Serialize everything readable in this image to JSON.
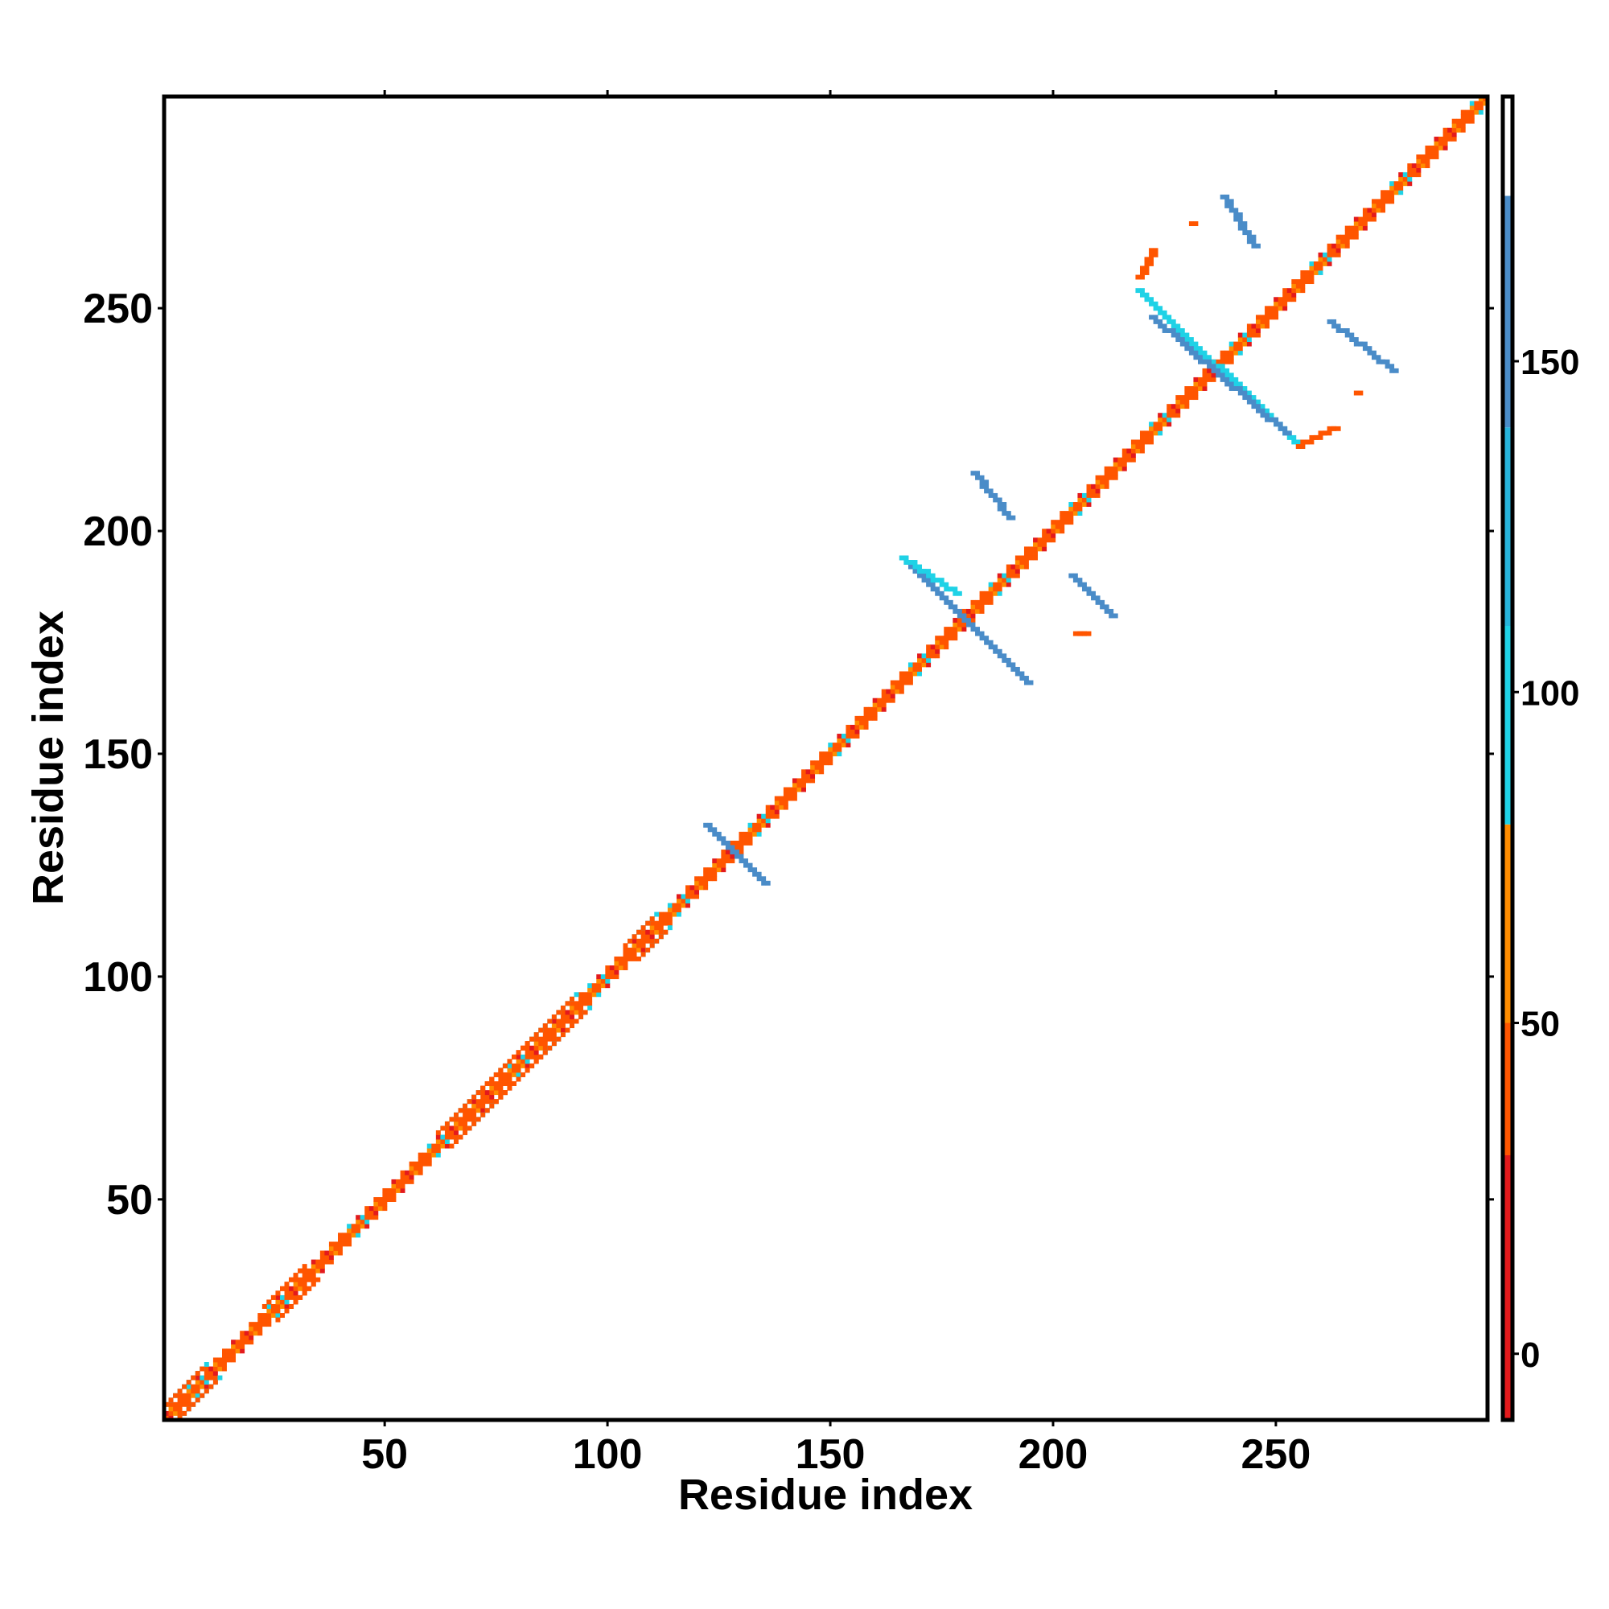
{
  "chart_data": {
    "type": "heatmap",
    "title": "",
    "xlabel": "Residue index",
    "ylabel": "Residue index",
    "xlim": [
      1,
      297
    ],
    "ylim": [
      1,
      297
    ],
    "x_ticks": [
      50,
      100,
      150,
      200,
      250
    ],
    "y_ticks": [
      50,
      100,
      150,
      200,
      250
    ],
    "colorbar": {
      "range": [
        -10,
        190
      ],
      "ticks": [
        0,
        50,
        100,
        150
      ],
      "bins": [
        {
          "from": -10,
          "to": 30,
          "color": "#e31a1c"
        },
        {
          "from": 30,
          "to": 50,
          "color": "#ff5500"
        },
        {
          "from": 50,
          "to": 80,
          "color": "#ff8c00"
        },
        {
          "from": 80,
          "to": 110,
          "color": "#1fd2e6"
        },
        {
          "from": 110,
          "to": 140,
          "color": "#27b4dc"
        },
        {
          "from": 140,
          "to": 175,
          "color": "#4a8cc8"
        },
        {
          "from": 175,
          "to": 190,
          "color": "#ffffff"
        }
      ]
    },
    "diagonal": {
      "from": 1,
      "to": 297,
      "value_pattern": [
        40,
        20,
        70,
        40,
        40,
        30,
        60,
        40,
        50,
        95,
        40,
        20,
        65,
        40,
        45,
        30,
        75,
        40
      ]
    },
    "diagonal_bulges": [
      {
        "center": 5,
        "length": 10,
        "value": 95
      },
      {
        "center": 28,
        "length": 8,
        "value": 45
      },
      {
        "center": 70,
        "length": 14,
        "value": 95
      },
      {
        "center": 78,
        "length": 10,
        "value": 40
      },
      {
        "center": 88,
        "length": 10,
        "value": 95
      },
      {
        "center": 108,
        "length": 6,
        "value": 95
      }
    ],
    "contact_segments": [
      {
        "x1": 122,
        "y1": 134,
        "x2": 135,
        "y2": 121,
        "value": 150
      },
      {
        "x1": 166,
        "y1": 194,
        "x2": 194,
        "y2": 166,
        "value": 150
      },
      {
        "x1": 166,
        "y1": 194,
        "x2": 178,
        "y2": 186,
        "value": 100
      },
      {
        "x1": 182,
        "y1": 213,
        "x2": 190,
        "y2": 203,
        "value": 150
      },
      {
        "x1": 204,
        "y1": 190,
        "x2": 213,
        "y2": 181,
        "value": 150
      },
      {
        "x1": 205,
        "y1": 177,
        "x2": 207,
        "y2": 177,
        "value": 40
      },
      {
        "x1": 219,
        "y1": 257,
        "x2": 222,
        "y2": 263,
        "value": 40
      },
      {
        "x1": 219,
        "y1": 254,
        "x2": 255,
        "y2": 219,
        "value": 100
      },
      {
        "x1": 222,
        "y1": 248,
        "x2": 252,
        "y2": 222,
        "value": 150
      },
      {
        "x1": 255,
        "y1": 219,
        "x2": 263,
        "y2": 223,
        "value": 40
      },
      {
        "x1": 238,
        "y1": 275,
        "x2": 245,
        "y2": 264,
        "value": 150
      },
      {
        "x1": 262,
        "y1": 247,
        "x2": 276,
        "y2": 236,
        "value": 150
      },
      {
        "x1": 231,
        "y1": 269,
        "x2": 231,
        "y2": 269,
        "value": 40
      },
      {
        "x1": 268,
        "y1": 231,
        "x2": 268,
        "y2": 231,
        "value": 40
      }
    ]
  }
}
